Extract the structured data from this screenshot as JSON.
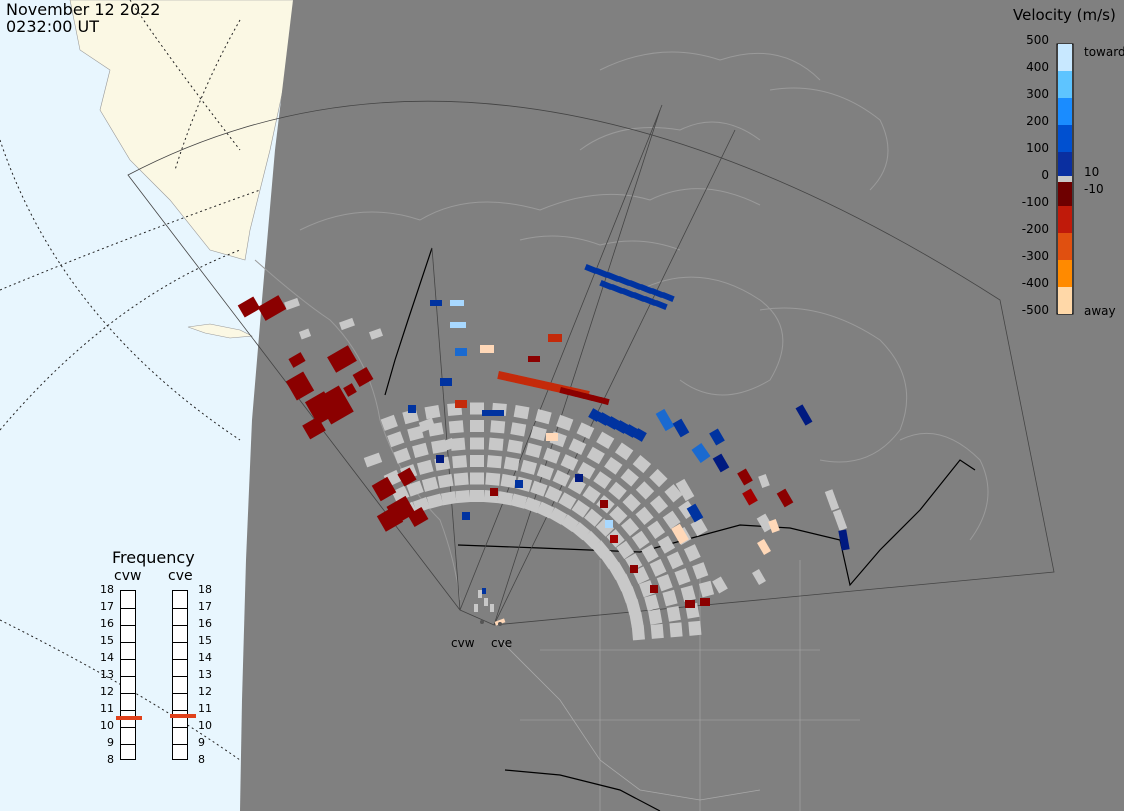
{
  "header": {
    "date": "November 12 2022",
    "time": "0232:00 UT"
  },
  "colorbar": {
    "title": "Velocity (m/s)",
    "ticks": [
      "500",
      "400",
      "300",
      "200",
      "100",
      "10",
      "0",
      "-10",
      "-100",
      "-200",
      "-300",
      "-400",
      "-500"
    ],
    "toward_label": "toward",
    "away_label": "away",
    "colors": [
      "#c8e8ff",
      "#5ec4ff",
      "#1a8cff",
      "#0050d0",
      "#0a2fa0",
      "#001a80",
      "#6e0000",
      "#9e0000",
      "#c01a0a",
      "#e05010",
      "#ff8a00",
      "#ffd8a8"
    ]
  },
  "frequency_panel": {
    "title": "Frequency",
    "radars": [
      {
        "name": "cvw",
        "level": 10.5
      },
      {
        "name": "cve",
        "level": 10.6
      }
    ],
    "scale": [
      "18",
      "17",
      "16",
      "15",
      "14",
      "13",
      "12",
      "11",
      "10",
      "9",
      "8"
    ],
    "marker_color": "#e0401a"
  },
  "sites": [
    {
      "name": "cvw"
    },
    {
      "name": "cve"
    }
  ],
  "colors": {
    "background_shade": "#808080",
    "ocean": "#e8f6fe",
    "land_outline": "#9a9a9a"
  }
}
